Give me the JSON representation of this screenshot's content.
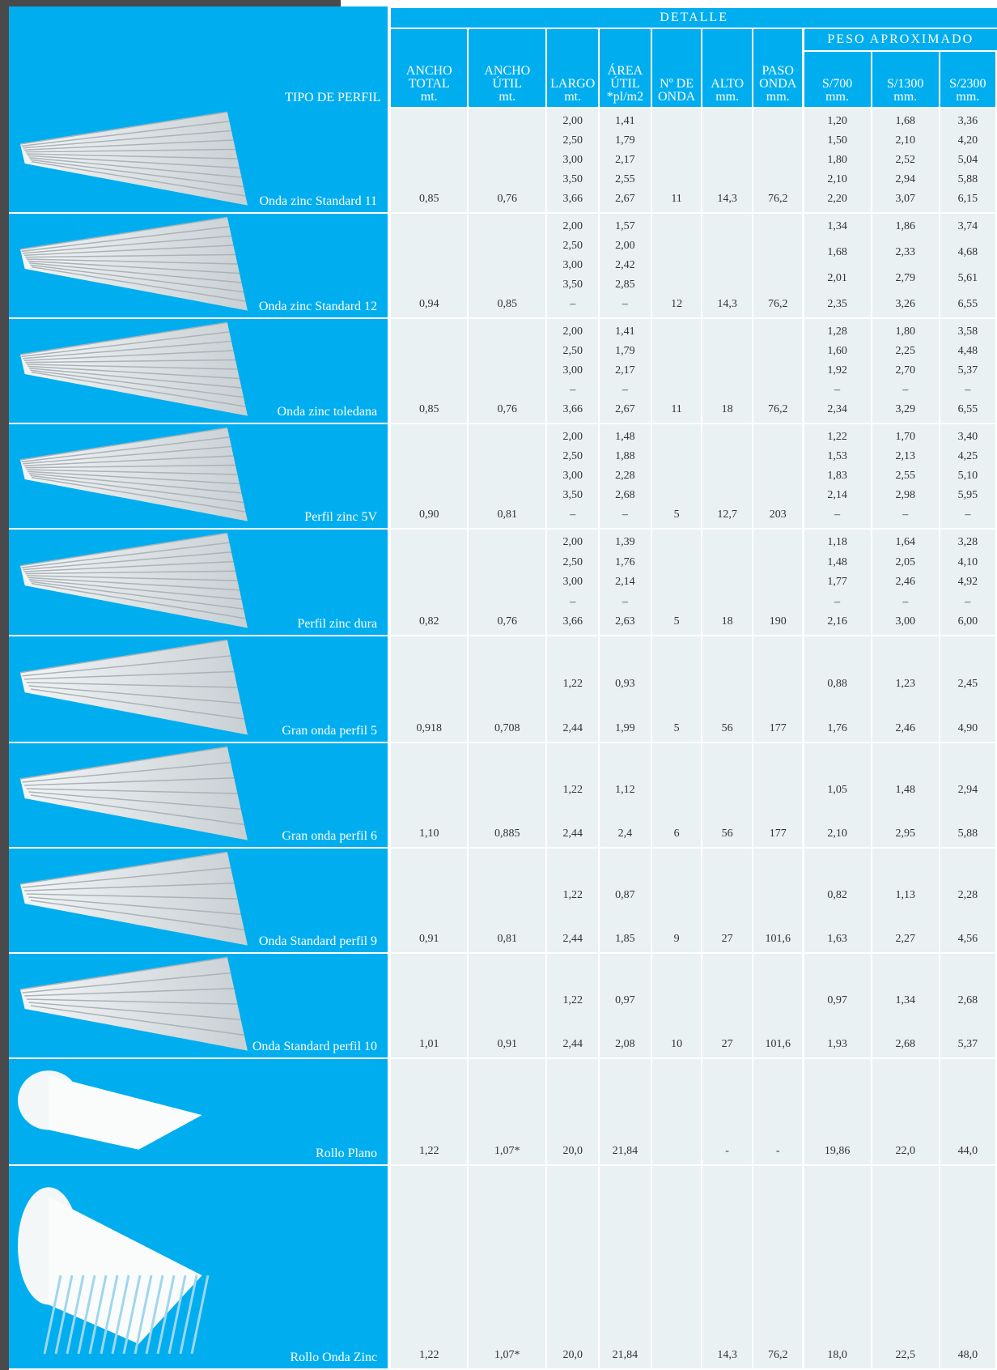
{
  "header": {
    "detalle": "DETALLE",
    "tipo": "TIPO DE PERFIL",
    "peso": "PESO APROXIMADO",
    "columns": [
      "ANCHO\nTOTAL\nmt.",
      "ANCHO\nÚTIL\nmt.",
      "LARGO\nmt.",
      "ÁREA\nÚTIL\n*pl/m2",
      "Nº DE\nONDA",
      "ALTO\nmm.",
      "PASO\nONDA\nmm.",
      "S/700\nmm.",
      "S/1300\nmm.",
      "S/2300\nmm."
    ]
  },
  "table": {
    "rows": [
      {
        "name": "Onda zinc Standard 11",
        "cells": [
          "0,85",
          "0,76",
          [
            "2,00",
            "2,50",
            "3,00",
            "3,50",
            "3,66"
          ],
          [
            "1,41",
            "1,79",
            "2,17",
            "2,55",
            "2,67"
          ],
          "11",
          "14,3",
          "76,2",
          [
            "1,20",
            "1,50",
            "1,80",
            "2,10",
            "2,20"
          ],
          [
            "1,68",
            "2,10",
            "2,52",
            "2,94",
            "3,07"
          ],
          [
            "3,36",
            "4,20",
            "5,04",
            "5,88",
            "6,15"
          ]
        ]
      },
      {
        "name": "Onda zinc Standard 12",
        "cells": [
          "0,94",
          "0,85",
          [
            "2,00",
            "2,50",
            "3,00",
            "3,50",
            "–"
          ],
          [
            "1,57",
            "2,00",
            "2,42",
            "2,85",
            "–"
          ],
          "12",
          "14,3",
          "76,2",
          [
            "1,34",
            "1,68",
            "2,01",
            "2,35"
          ],
          [
            "1,86",
            "2,33",
            "2,79",
            "3,26"
          ],
          [
            "3,74",
            "4,68",
            "5,61",
            "6,55"
          ]
        ]
      },
      {
        "name": "Onda zinc toledana",
        "cells": [
          "0,85",
          "0,76",
          [
            "2,00",
            "2,50",
            "3,00",
            "–",
            "3,66"
          ],
          [
            "1,41",
            "1,79",
            "2,17",
            "–",
            "2,67"
          ],
          "11",
          "18",
          "76,2",
          [
            "1,28",
            "1,60",
            "1,92",
            "–",
            "2,34"
          ],
          [
            "1,80",
            "2,25",
            "2,70",
            "–",
            "3,29"
          ],
          [
            "3,58",
            "4,48",
            "5,37",
            "–",
            "6,55"
          ]
        ]
      },
      {
        "name": "Perfil zinc 5V",
        "cells": [
          "0,90",
          "0,81",
          [
            "2,00",
            "2,50",
            "3,00",
            "3,50",
            "–"
          ],
          [
            "1,48",
            "1,88",
            "2,28",
            "2,68",
            "–"
          ],
          "5",
          "12,7",
          "203",
          [
            "1,22",
            "1,53",
            "1,83",
            "2,14",
            "–"
          ],
          [
            "1,70",
            "2,13",
            "2,55",
            "2,98",
            "–"
          ],
          [
            "3,40",
            "4,25",
            "5,10",
            "5,95",
            "–"
          ]
        ]
      },
      {
        "name": "Perfil zinc dura",
        "cells": [
          "0,82",
          "0,76",
          [
            "2,00",
            "2,50",
            "3,00",
            "–",
            "3,66"
          ],
          [
            "1,39",
            "1,76",
            "2,14",
            "–",
            "2,63"
          ],
          "5",
          "18",
          "190",
          [
            "1,18",
            "1,48",
            "1,77",
            "–",
            "2,16"
          ],
          [
            "1,64",
            "2,05",
            "2,46",
            "–",
            "3,00"
          ],
          [
            "3,28",
            "4,10",
            "4,92",
            "–",
            "6,00"
          ]
        ]
      },
      {
        "name": "Gran onda perfil 5",
        "cells": [
          "0,918",
          "0,708",
          [
            "1,22",
            "2,44"
          ],
          [
            "0,93",
            "1,99"
          ],
          "5",
          "56",
          "177",
          [
            "0,88",
            "1,76"
          ],
          [
            "1,23",
            "2,46"
          ],
          [
            "2,45",
            "4,90"
          ]
        ]
      },
      {
        "name": "Gran onda perfil 6",
        "cells": [
          "1,10",
          "0,885",
          [
            "1,22",
            "2,44"
          ],
          [
            "1,12",
            "2,4"
          ],
          "6",
          "56",
          "177",
          [
            "1,05",
            "2,10"
          ],
          [
            "1,48",
            "2,95"
          ],
          [
            "2,94",
            "5,88"
          ]
        ]
      },
      {
        "name": "Onda Standard perfil 9",
        "cells": [
          "0,91",
          "0,81",
          [
            "1,22",
            "2,44"
          ],
          [
            "0,87",
            "1,85"
          ],
          "9",
          "27",
          "101,6",
          [
            "0,82",
            "1,63"
          ],
          [
            "1,13",
            "2,27"
          ],
          [
            "2,28",
            "4,56"
          ]
        ]
      },
      {
        "name": "Onda Standard perfil 10",
        "cells": [
          "1,01",
          "0,91",
          [
            "1,22",
            "2,44"
          ],
          [
            "0,97",
            "2,08"
          ],
          "10",
          "27",
          "101,6",
          [
            "0,97",
            "1,93"
          ],
          [
            "1,34",
            "2,68"
          ],
          [
            "2,68",
            "5,37"
          ]
        ]
      },
      {
        "name": "Rollo Plano",
        "cells": [
          "1,22",
          "1,07*",
          "20,0",
          "21,84",
          null,
          "-",
          "-",
          "19,86",
          "22,0",
          "44,0"
        ]
      },
      {
        "name": "Rollo Onda Zinc",
        "cells": [
          "1,22",
          "1,07*",
          "20,0",
          "21,84",
          null,
          "14,3",
          "76,2",
          "18,0",
          "22,5",
          "48,0"
        ]
      }
    ]
  }
}
